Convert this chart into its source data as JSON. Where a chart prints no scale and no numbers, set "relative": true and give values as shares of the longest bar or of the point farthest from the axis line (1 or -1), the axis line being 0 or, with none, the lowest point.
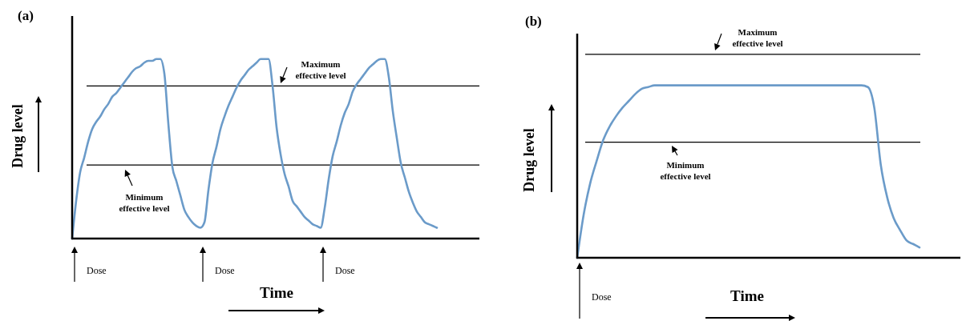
{
  "chart_data": [
    {
      "type": "line",
      "title": "(a)",
      "xlabel": "Time",
      "ylabel": "Drug level",
      "relative": true,
      "marker": "none",
      "line_style": "solid",
      "categories": [
        null,
        null,
        null,
        null,
        null,
        null,
        null,
        null,
        null,
        null,
        null,
        null,
        null,
        null,
        null,
        null,
        null,
        null,
        null,
        null,
        null,
        null,
        null,
        null,
        null,
        null,
        null,
        null,
        null,
        null,
        null,
        null,
        null,
        null,
        null,
        null,
        null,
        null,
        null,
        null,
        null,
        null,
        null,
        null,
        null,
        null,
        null,
        null,
        null,
        null,
        null,
        null,
        null,
        null,
        null,
        null,
        null,
        null,
        null,
        null,
        null,
        null,
        null,
        null,
        null,
        null,
        null,
        null,
        null,
        null,
        null,
        null,
        null,
        null,
        null,
        null,
        null,
        null,
        null,
        null,
        null,
        null,
        null,
        null,
        null,
        null,
        null,
        null,
        null,
        null,
        null,
        null
      ],
      "series": [
        {
          "color": "#6b9bc9",
          "values": [
            0,
            0.21,
            0.37,
            0.45,
            0.54,
            0.61,
            0.65,
            0.68,
            0.72,
            0.75,
            0.79,
            0.81,
            0.84,
            0.87,
            0.9,
            0.93,
            0.95,
            0.96,
            0.98,
            0.99,
            0.99,
            1,
            1,
            0.92,
            0.64,
            0.4,
            0.32,
            0.24,
            0.16,
            0.12,
            0.09,
            0.07,
            0.06,
            0.09,
            0.27,
            0.42,
            0.51,
            0.61,
            0.68,
            0.74,
            0.79,
            0.84,
            0.88,
            0.91,
            0.94,
            0.96,
            0.98,
            1,
            1,
            1,
            0.85,
            0.62,
            0.47,
            0.36,
            0.29,
            0.21,
            0.18,
            0.15,
            0.12,
            0.1,
            0.08,
            0.07,
            0.06,
            0.17,
            0.33,
            0.46,
            0.54,
            0.63,
            0.7,
            0.75,
            0.82,
            0.86,
            0.89,
            0.92,
            0.95,
            0.97,
            0.99,
            1,
            1,
            0.9,
            0.71,
            0.56,
            0.42,
            0.34,
            0.26,
            0.2,
            0.15,
            0.12,
            0.09,
            0.08,
            0.07,
            0.06
          ]
        }
      ],
      "ref_lines": [
        {
          "axis": "y",
          "value": 0.85,
          "label": "Maximum effective level",
          "color": "#000000"
        },
        {
          "axis": "y",
          "value": 0.41,
          "label": "Minimum effective level",
          "color": "#000000"
        }
      ],
      "annotations": [
        "Dose",
        "Dose",
        "Dose"
      ]
    },
    {
      "type": "line",
      "title": "(b)",
      "xlabel": "Time",
      "ylabel": "Drug level",
      "relative": true,
      "marker": "none",
      "line_style": "solid",
      "categories": [
        null,
        null,
        null,
        null,
        null,
        null,
        null,
        null,
        null,
        null,
        null,
        null,
        null,
        null,
        null,
        null,
        null,
        null,
        null,
        null,
        null,
        null,
        null,
        null,
        null,
        null,
        null,
        null,
        null,
        null,
        null,
        null,
        null,
        null,
        null,
        null,
        null,
        null,
        null,
        null,
        null,
        null,
        null,
        null,
        null,
        null,
        null,
        null,
        null,
        null,
        null,
        null,
        null,
        null
      ],
      "series": [
        {
          "color": "#6b9bc9",
          "values": [
            0,
            0.25,
            0.43,
            0.56,
            0.68,
            0.76,
            0.82,
            0.87,
            0.91,
            0.95,
            0.98,
            0.99,
            1,
            1,
            1,
            1,
            1,
            1,
            1,
            1,
            1,
            1,
            1,
            1,
            1,
            1,
            1,
            1,
            1,
            1,
            1,
            1,
            1,
            1,
            1,
            1,
            1,
            1,
            1,
            1,
            1,
            1,
            1,
            1,
            1,
            0.99,
            0.87,
            0.54,
            0.35,
            0.23,
            0.16,
            0.1,
            0.08,
            0.06
          ]
        }
      ],
      "ref_lines": [
        {
          "axis": "y",
          "value": 1.18,
          "label": "Maximum effective level",
          "color": "#000000"
        },
        {
          "axis": "y",
          "value": 0.67,
          "label": "Minimum effective level",
          "color": "#000000"
        }
      ],
      "annotations": [
        "Dose"
      ]
    }
  ]
}
